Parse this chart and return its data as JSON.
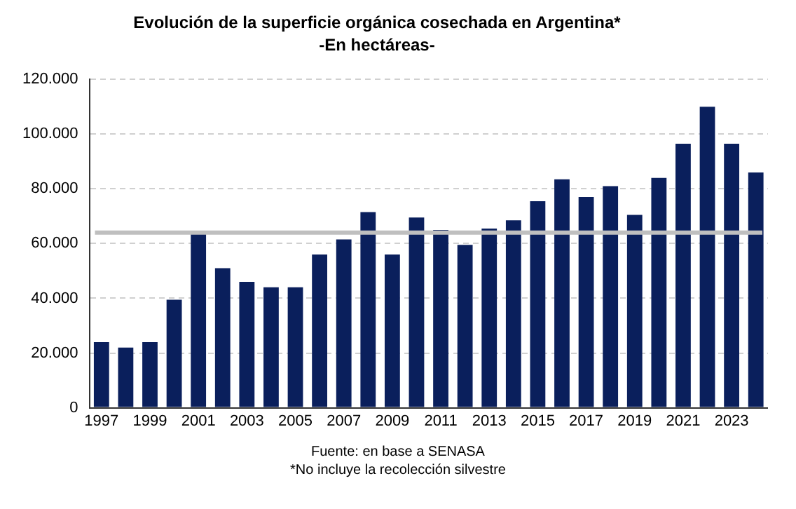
{
  "chart_data": {
    "type": "bar",
    "title": "Evolución de la superficie orgánica cosechada en Argentina*",
    "subtitle": "-En hectáreas-",
    "categories": [
      "1997",
      null,
      "1999",
      null,
      "2001",
      null,
      "2003",
      null,
      "2005",
      null,
      "2007",
      null,
      "2009",
      null,
      "2011",
      null,
      "2013",
      null,
      "2015",
      null,
      "2017",
      null,
      "2019",
      null,
      "2021",
      null,
      "2023",
      null
    ],
    "values": [
      24000,
      22000,
      24000,
      39500,
      63500,
      51000,
      46000,
      44000,
      44000,
      56000,
      61500,
      71500,
      56000,
      69500,
      65000,
      59500,
      65500,
      68500,
      75500,
      83500,
      77000,
      81000,
      70500,
      84000,
      96500,
      110000,
      96500,
      86000
    ],
    "color": "#0a1f5c",
    "ylim": [
      0,
      120000
    ],
    "yticks": [
      {
        "value": 0,
        "label": "0"
      },
      {
        "value": 20000,
        "label": "20.000"
      },
      {
        "value": 40000,
        "label": "40.000"
      },
      {
        "value": 60000,
        "label": "60.000"
      },
      {
        "value": 80000,
        "label": "80.000"
      },
      {
        "value": 100000,
        "label": "100.000"
      },
      {
        "value": 120000,
        "label": "120.000"
      }
    ],
    "grid": "y",
    "ref_lines": [
      {
        "axis": "y",
        "value": 64000,
        "label": null,
        "color": "#bfbfbf"
      }
    ],
    "annotations": [
      "Fuente: en base a SENASA",
      "*No incluye la recolección silvestre"
    ]
  }
}
